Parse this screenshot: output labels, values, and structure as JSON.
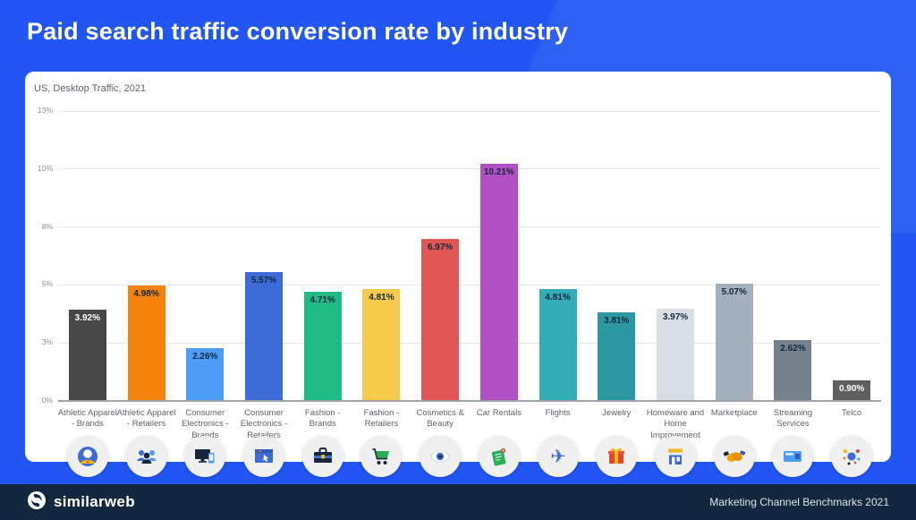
{
  "page": {
    "title": "Paid search traffic conversion rate by industry",
    "background_color": "#2156F3",
    "footer_color": "#13283E"
  },
  "chart_data": {
    "type": "bar",
    "title": "Paid search traffic conversion rate by industry",
    "subtitle": "US, Desktop Traffic, 2021",
    "categories": [
      "Athletic Apparel - Brands",
      "Athletic Apparel - Retailers",
      "Consumer Electronics - Brands",
      "Consumer Electronics - Retailers",
      "Fashion - Brands",
      "Fashion - Retailers",
      "Cosmetics & Beauty",
      "Car Rentals",
      "Flights",
      "Jewelry",
      "Homeware and Home Improvement",
      "Marketplace",
      "Streaming Services",
      "Telco"
    ],
    "values": [
      3.92,
      4.98,
      2.26,
      5.57,
      4.71,
      4.81,
      6.97,
      10.21,
      4.81,
      3.81,
      3.97,
      5.07,
      2.62,
      0.9
    ],
    "value_labels": [
      "3.92%",
      "4.98%",
      "2.26%",
      "5.57%",
      "4.71%",
      "4.81%",
      "6.97%",
      "10.21%",
      "4.81%",
      "3.81%",
      "3.97%",
      "5.07%",
      "2.62%",
      "0.90%"
    ],
    "bar_colors": [
      "#474747",
      "#F5820B",
      "#4D9DF6",
      "#3D6BD8",
      "#1FBB84",
      "#F6CB4C",
      "#E25656",
      "#B14FC4",
      "#34ADB9",
      "#2D97A1",
      "#D8DEE3",
      "#A4B1BC",
      "#75828E",
      "#5F5F5F"
    ],
    "value_label_colors": [
      "#FFFFFF",
      "#12273F",
      "#12273F",
      "#12273F",
      "#12273F",
      "#12273F",
      "#12273F",
      "#12273F",
      "#12273F",
      "#12273F",
      "#12273F",
      "#12273F",
      "#12273F",
      "#FFFFFF"
    ],
    "icons": [
      "person-avatar",
      "people-group",
      "desktop-monitor",
      "browser-window",
      "toolbox",
      "shopping-cart",
      "eye",
      "map-pin",
      "airplane",
      "gift-box",
      "storefront",
      "handshake",
      "media-player",
      "network-hub"
    ],
    "y_axis": {
      "tick_labels": [
        "0%",
        "3%",
        "5%",
        "8%",
        "10%",
        "13%"
      ],
      "tick_values": [
        0,
        2.5,
        5,
        7.5,
        10,
        12.5
      ]
    },
    "ylim": [
      0,
      12.5
    ],
    "grid": true,
    "legend": false,
    "xlabel": "",
    "ylabel": ""
  },
  "footer": {
    "brand": "similarweb",
    "right_text": "Marketing Channel Benchmarks 2021"
  }
}
